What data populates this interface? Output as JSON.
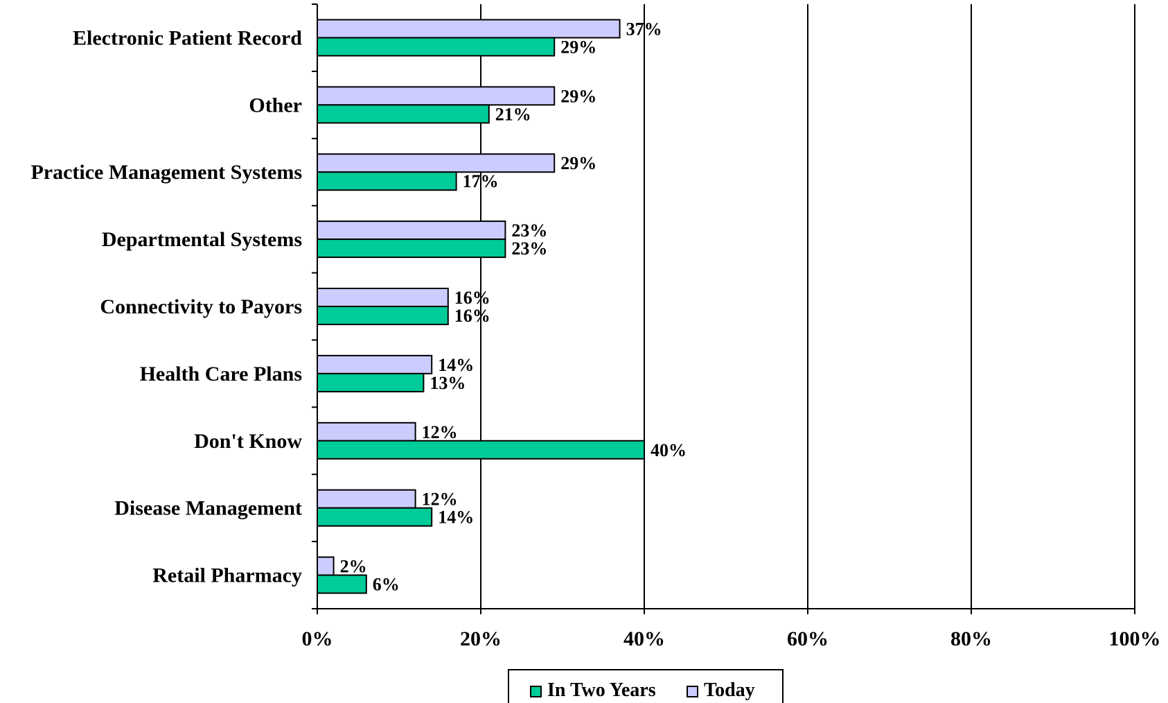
{
  "chart_data": {
    "type": "bar",
    "orientation": "horizontal",
    "categories": [
      "Electronic Patient Record",
      "Other",
      "Practice Management Systems",
      "Departmental Systems",
      "Connectivity to Payors",
      "Health Care Plans",
      "Don't Know",
      "Disease Management",
      "Retail Pharmacy"
    ],
    "series": [
      {
        "name": "Today",
        "color": "#ccccff",
        "values": [
          37,
          29,
          29,
          23,
          16,
          14,
          12,
          12,
          2
        ],
        "labels": [
          "37%",
          "29%",
          "29%",
          "23%",
          "16%",
          "14%",
          "12%",
          "12%",
          "2%"
        ]
      },
      {
        "name": "In Two Years",
        "color": "#00cc99",
        "values": [
          29,
          21,
          17,
          23,
          16,
          13,
          40,
          14,
          6
        ],
        "labels": [
          "29%",
          "21%",
          "17%",
          "23%",
          "16%",
          "13%",
          "40%",
          "14%",
          "6%"
        ]
      }
    ],
    "xlim": [
      0,
      100
    ],
    "xticks": [
      0,
      20,
      40,
      60,
      80,
      100
    ],
    "xtick_labels": [
      "0%",
      "20%",
      "40%",
      "60%",
      "80%",
      "100%"
    ],
    "grid": "vertical",
    "legend": {
      "position": "bottom",
      "entries": [
        {
          "label": "In Two Years",
          "color": "#00cc99"
        },
        {
          "label": "Today",
          "color": "#ccccff"
        }
      ]
    },
    "title": "",
    "xlabel": "",
    "ylabel": ""
  }
}
